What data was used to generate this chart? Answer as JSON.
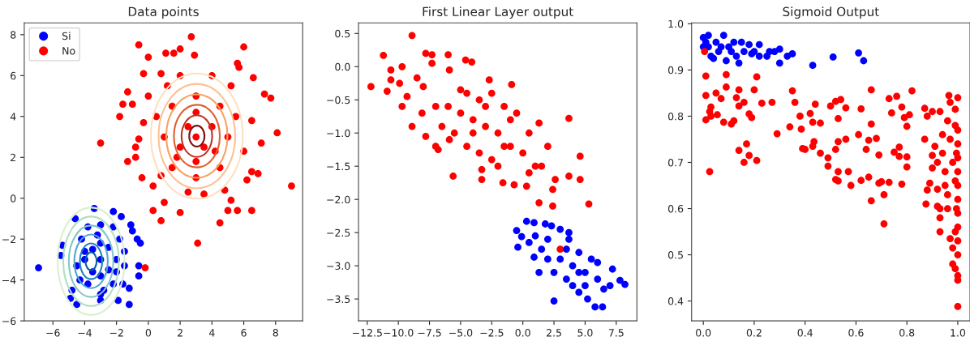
{
  "chart_data": [
    {
      "type": "scatter",
      "title": "Data points",
      "xlim": [
        -7.8,
        9.7
      ],
      "ylim": [
        -6,
        8.58
      ],
      "xticks": [
        {
          "value": -6,
          "label": "−6"
        },
        {
          "value": -4,
          "label": "−4"
        },
        {
          "value": -2,
          "label": "−2"
        },
        0,
        2,
        4,
        6,
        8
      ],
      "yticks": [
        {
          "value": -6,
          "label": "−6"
        },
        {
          "value": -4,
          "label": "−4"
        },
        {
          "value": -2,
          "label": "−2"
        },
        0,
        2,
        4,
        6,
        8
      ],
      "grid": false,
      "legend": "top left",
      "marker": "circle",
      "series": [
        {
          "name": "Si",
          "color": "#0000ff",
          "x": [
            -6.9,
            -5.5,
            -5.4,
            -4.6,
            -3.4,
            -2.2,
            -1.7,
            -1.1,
            -1.0,
            -0.7,
            -0.5,
            -0.6,
            -0.6,
            -1.2,
            -1.2,
            -4.5,
            -4.9,
            -4.8,
            -3.0,
            -1.9,
            -3.0,
            -3.5,
            -2.5,
            -3.0,
            -3.0,
            -4.0,
            -2.0,
            -4.2,
            -1.8,
            -3.8,
            -2.2,
            -3.8,
            -2.2,
            -4.5,
            -1.5,
            -3.0,
            -3.0,
            -3.5,
            -2.5,
            -4.3,
            -1.6,
            -3.2,
            -2.8,
            -4.0,
            -2.0,
            -1.5
          ],
          "values": [
            -3.4,
            -2.8,
            -2.3,
            -1.0,
            -0.5,
            -0.65,
            -0.9,
            -1.3,
            -1.6,
            -2.0,
            -2.2,
            -3.3,
            -3.8,
            -4.4,
            -5.2,
            -5.2,
            -4.9,
            -4.5,
            -5.0,
            -5.0,
            -3.0,
            -2.5,
            -3.5,
            -1.3,
            -4.7,
            -3.0,
            -3.0,
            -2.0,
            -2.0,
            -4.2,
            -4.2,
            -1.4,
            -1.4,
            -3.3,
            -3.3,
            -2.2,
            -3.8,
            -3.6,
            -2.4,
            -4.0,
            -4.2,
            -1.8,
            -4.5,
            -2.6,
            -3.6,
            -2.6
          ]
        },
        {
          "name": "No",
          "color": "#ff0000",
          "x": [
            2.7,
            -0.6,
            6.0,
            0.0,
            1.1,
            1.6,
            2.0,
            2.9,
            5.6,
            5.7,
            6.6,
            -0.3,
            0.8,
            7.3,
            7.7,
            -1.3,
            -1.6,
            -1.0,
            -1.8,
            -3.0,
            -0.3,
            -0.6,
            -0.8,
            -0.8,
            -1.3,
            -0.4,
            0.3,
            0.8,
            8.1,
            9.0,
            7.1,
            6.5,
            6.9,
            6.2,
            0.3,
            0.8,
            2.0,
            1.0,
            3.1,
            4.5,
            5.0,
            5.6,
            6.5,
            5.2,
            4.8,
            -0.2,
            3.0,
            2.5,
            3.5,
            2.0,
            4.0,
            3.0,
            3.0,
            1.0,
            5.0,
            1.5,
            4.5,
            1.5,
            4.5,
            2.0,
            4.0,
            0.5,
            5.5,
            6.0,
            0.0,
            3.0,
            3.0,
            2.5,
            3.5,
            1.2,
            5.2,
            6.5,
            4.2,
            1.8
          ],
          "values": [
            7.9,
            7.5,
            7.4,
            6.9,
            7.1,
            7.1,
            7.3,
            7.0,
            6.6,
            6.4,
            5.9,
            6.1,
            6.1,
            5.1,
            4.9,
            5.2,
            4.6,
            4.6,
            4.0,
            2.7,
            3.7,
            2.9,
            2.5,
            2.0,
            1.8,
            1.0,
            0.6,
            1.1,
            3.2,
            0.6,
            2.7,
            1.3,
            1.2,
            0.9,
            -0.6,
            -1.1,
            -0.7,
            -0.2,
            -2.2,
            -1.2,
            -0.6,
            -0.6,
            -0.6,
            -0.1,
            0.4,
            -3.4,
            3.0,
            3.5,
            2.5,
            2.5,
            3.5,
            5.0,
            1.0,
            3.0,
            3.0,
            4.5,
            4.5,
            1.5,
            1.5,
            6.0,
            6.0,
            4.0,
            4.0,
            2.3,
            5.0,
            4.2,
            1.8,
            0.3,
            0.2,
            5.5,
            5.5,
            3.8,
            2.3,
            2.0
          ]
        }
      ]
    },
    {
      "type": "scatter",
      "title": "First Linear Layer output",
      "xlim": [
        -13.2,
        9.16
      ],
      "ylim": [
        -3.83,
        0.66
      ],
      "xticks": [
        {
          "value": -12.5,
          "label": "−12.5"
        },
        {
          "value": -10,
          "label": "−10.0"
        },
        {
          "value": -7.5,
          "label": "−7.5"
        },
        {
          "value": -5,
          "label": "−5.0"
        },
        {
          "value": -2.5,
          "label": "−2.5"
        },
        {
          "value": 0,
          "label": "0.0"
        },
        2.5,
        {
          "value": 5,
          "label": "5.0"
        },
        7.5
      ],
      "yticks": [
        {
          "value": -3.5,
          "label": "−3.5"
        },
        {
          "value": -3,
          "label": "−3.0"
        },
        {
          "value": -2.5,
          "label": "−2.5"
        },
        {
          "value": -2,
          "label": "−2.0"
        },
        {
          "value": -1.5,
          "label": "−1.5"
        },
        {
          "value": -1,
          "label": "−1.0"
        },
        {
          "value": -0.5,
          "label": "−0.5"
        },
        {
          "value": 0,
          "label": "0.0"
        },
        0.5
      ],
      "grid": false,
      "marker": "circle",
      "series": [
        {
          "color": "#ff0000",
          "x": [
            -12.2,
            -11.2,
            -10.9,
            -10.6,
            -10.6,
            -9.9,
            -9.7,
            -9.7,
            -9.3,
            -8.9,
            -8.9,
            -8.5,
            -7.8,
            -7.3,
            -7.3,
            -8.1,
            -7.8,
            -7.0,
            -6.8,
            -6.0,
            -5.9,
            -5.9,
            -5.6,
            -4.6,
            -4.1,
            -3.3,
            -3.3,
            -2.7,
            -1.6,
            -0.9,
            -0.7,
            1.3,
            1.3,
            2.4,
            2.4,
            3.7,
            4.6,
            4.6,
            5.3,
            3.0,
            2.6,
            3.7,
            1.5,
            0.3,
            -6.0,
            -5.0,
            -4.0,
            -3.0,
            -2.0,
            -1.0,
            0.0,
            -4.5,
            -3.5,
            -2.5,
            -1.5,
            -5.5,
            -4.5,
            -3.5,
            -2.5,
            -1.0,
            -0.5,
            0.5,
            1.0,
            2.0,
            -7.0,
            -6.5,
            -2.0,
            -4.0,
            -3.0,
            -8.0,
            -5.0,
            -1.5,
            0.5
          ],
          "values": [
            -0.3,
            0.17,
            -0.37,
            -0.05,
            -0.2,
            -0.25,
            0.0,
            -0.6,
            -0.45,
            0.47,
            -0.9,
            -0.17,
            0.2,
            0.18,
            0.05,
            -0.7,
            -1.05,
            -1.2,
            -1.25,
            0.18,
            -0.05,
            -1.1,
            -1.65,
            0.1,
            0.07,
            -1.55,
            -1.7,
            -0.2,
            -1.75,
            -0.27,
            -1.78,
            -0.85,
            -2.05,
            -2.1,
            -1.85,
            -0.78,
            -1.35,
            -1.7,
            -2.07,
            -2.75,
            -1.7,
            -1.65,
            -1.5,
            -1.8,
            -0.6,
            -0.7,
            -0.8,
            -0.9,
            -1.0,
            -1.2,
            -1.3,
            -0.4,
            -0.5,
            -0.4,
            -0.6,
            -1.0,
            -1.2,
            -1.3,
            -1.4,
            -0.8,
            -0.7,
            -1.0,
            -1.5,
            -1.2,
            -0.6,
            -0.9,
            -1.5,
            -1.0,
            -0.6,
            -0.3,
            -0.35,
            -1.2,
            -1.6
          ]
        },
        {
          "color": "#0000ff",
          "x": [
            0.3,
            0.9,
            -0.5,
            -0.4,
            -0.1,
            1.8,
            2.3,
            3.0,
            3.7,
            3.7,
            0.9,
            1.3,
            2.5,
            5.8,
            6.4,
            8.2,
            7.8,
            7.2,
            7.0,
            6.5,
            5.2,
            4.5,
            0.5,
            1.5,
            2.0,
            3.0,
            4.0,
            5.0,
            6.0,
            4.5,
            5.5,
            3.5,
            2.5,
            4.0,
            5.0,
            6.0,
            3.5,
            1.0,
            2.0,
            4.5
          ],
          "values": [
            -2.33,
            -2.35,
            -2.47,
            -2.72,
            -2.56,
            -2.37,
            -2.4,
            -2.45,
            -2.5,
            -2.6,
            -2.87,
            -3.1,
            -3.53,
            -3.62,
            -3.62,
            -3.28,
            -3.22,
            -3.05,
            -3.3,
            -3.35,
            -3.5,
            -3.4,
            -2.65,
            -2.75,
            -2.9,
            -2.9,
            -3.0,
            -3.1,
            -3.2,
            -2.8,
            -2.9,
            -3.2,
            -3.1,
            -3.3,
            -3.3,
            -2.95,
            -2.75,
            -2.55,
            -2.6,
            -3.1
          ]
        }
      ]
    },
    {
      "type": "scatter",
      "title": "Sigmoid Output",
      "xlim": [
        -0.046,
        1.048
      ],
      "ylim": [
        0.357,
        1.002
      ],
      "xticks": [
        {
          "value": 0,
          "label": "0.0"
        },
        0.2,
        0.4,
        0.6,
        0.8,
        {
          "value": 1,
          "label": "1.0"
        }
      ],
      "yticks": [
        0.4,
        0.5,
        0.6,
        0.7,
        0.8,
        0.9,
        {
          "value": 1,
          "label": "1.0"
        }
      ],
      "grid": false,
      "marker": "circle",
      "series": [
        {
          "color": "#0000ff",
          "x": [
            0.0,
            0.01,
            0.02,
            0.03,
            0.05,
            0.06,
            0.08,
            0.09,
            0.1,
            0.12,
            0.13,
            0.14,
            0.16,
            0.18,
            0.2,
            0.22,
            0.22,
            0.25,
            0.28,
            0.3,
            0.3,
            0.33,
            0.35,
            0.43,
            0.51,
            0.61,
            0.63,
            0.04,
            0.07,
            0.11,
            0.0,
            0.02,
            0.15,
            0.19,
            0.26
          ],
          "values": [
            0.97,
            0.96,
            0.95,
            0.93,
            0.96,
            0.94,
            0.975,
            0.92,
            0.95,
            0.96,
            0.93,
            0.915,
            0.94,
            0.955,
            0.94,
            0.955,
            0.93,
            0.93,
            0.94,
            0.915,
            0.945,
            0.93,
            0.935,
            0.91,
            0.928,
            0.937,
            0.92,
            0.925,
            0.95,
            0.94,
            0.95,
            0.975,
            0.96,
            0.935,
            0.94
          ]
        },
        {
          "color": "#ff0000",
          "x": [
            0.005,
            0.01,
            0.01,
            0.01,
            0.025,
            0.03,
            0.03,
            0.025,
            0.05,
            0.055,
            0.07,
            0.08,
            0.09,
            0.09,
            0.11,
            0.12,
            0.13,
            0.14,
            0.14,
            0.14,
            0.16,
            0.16,
            0.17,
            0.18,
            0.19,
            0.18,
            0.2,
            0.21,
            0.21,
            0.23,
            0.27,
            0.29,
            0.35,
            0.36,
            0.34,
            0.38,
            0.39,
            0.4,
            0.385,
            0.42,
            0.43,
            0.44,
            0.435,
            0.43,
            0.46,
            0.46,
            0.49,
            0.49,
            0.5,
            0.52,
            0.53,
            0.53,
            0.52,
            0.52,
            0.53,
            0.53,
            0.54,
            0.56,
            0.56,
            0.57,
            0.58,
            0.61,
            0.62,
            0.62,
            0.64,
            0.65,
            0.65,
            0.66,
            0.66,
            0.66,
            0.68,
            0.69,
            0.69,
            0.7,
            0.71,
            0.71,
            0.73,
            0.73,
            0.74,
            0.75,
            0.76,
            0.77,
            0.77,
            0.78,
            0.78,
            0.79,
            0.8,
            0.8,
            0.8,
            0.81,
            0.82,
            0.87,
            0.87,
            0.875,
            0.88,
            0.88,
            0.89,
            0.9,
            0.9,
            0.9,
            0.91,
            0.92,
            0.92,
            0.92,
            0.93,
            0.93,
            0.93,
            0.93,
            0.94,
            0.94,
            0.95,
            0.95,
            0.96,
            0.96,
            0.96,
            0.965,
            0.97,
            0.97,
            0.97,
            0.98,
            0.98,
            0.98,
            0.99,
            0.99,
            0.99,
            0.99,
            1.0,
            1.0,
            1.0,
            1.0,
            1.0,
            1.0,
            1.0,
            1.0,
            1.0,
            1.0,
            1.0,
            1.0,
            1.0,
            1.0,
            0.995,
            0.995,
            0.99
          ],
          "values": [
            0.94,
            0.887,
            0.845,
            0.792,
            0.81,
            0.82,
            0.8,
            0.68,
            0.85,
            0.803,
            0.838,
            0.787,
            0.89,
            0.863,
            0.783,
            0.79,
            0.84,
            0.822,
            0.857,
            0.726,
            0.83,
            0.7,
            0.74,
            0.805,
            0.797,
            0.715,
            0.857,
            0.885,
            0.704,
            0.828,
            0.83,
            0.762,
            0.855,
            0.83,
            0.777,
            0.8,
            0.73,
            0.728,
            0.772,
            0.806,
            0.787,
            0.826,
            0.745,
            0.735,
            0.72,
            0.785,
            0.71,
            0.692,
            0.822,
            0.832,
            0.795,
            0.745,
            0.728,
            0.663,
            0.66,
            0.68,
            0.836,
            0.818,
            0.75,
            0.68,
            0.65,
            0.76,
            0.816,
            0.661,
            0.728,
            0.748,
            0.668,
            0.857,
            0.783,
            0.617,
            0.752,
            0.716,
            0.655,
            0.658,
            0.63,
            0.567,
            0.838,
            0.657,
            0.807,
            0.722,
            0.843,
            0.733,
            0.713,
            0.82,
            0.653,
            0.797,
            0.778,
            0.712,
            0.69,
            0.803,
            0.855,
            0.817,
            0.75,
            0.61,
            0.8,
            0.64,
            0.655,
            0.81,
            0.715,
            0.688,
            0.735,
            0.7,
            0.642,
            0.605,
            0.6,
            0.58,
            0.55,
            0.81,
            0.76,
            0.72,
            0.68,
            0.65,
            0.79,
            0.63,
            0.6,
            0.845,
            0.83,
            0.75,
            0.535,
            0.7,
            0.48,
            0.515,
            0.47,
            0.815,
            0.78,
            0.66,
            0.84,
            0.77,
            0.74,
            0.71,
            0.68,
            0.65,
            0.62,
            0.59,
            0.56,
            0.53,
            0.5,
            0.455,
            0.445,
            0.388,
            0.72,
            0.6,
            0.55
          ]
        }
      ]
    }
  ]
}
